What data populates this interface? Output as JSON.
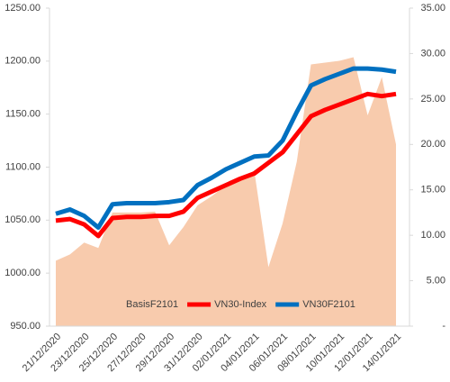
{
  "chart_data": {
    "type": "combo",
    "categories": [
      "21/12/2020",
      null,
      "23/12/2020",
      null,
      "25/12/2020",
      null,
      "27/12/2020",
      null,
      "29/12/2020",
      null,
      "31/12/2020",
      null,
      "02/01/2021",
      null,
      "04/01/2021",
      null,
      "06/01/2021",
      null,
      "08/01/2021",
      null,
      "10/01/2021",
      null,
      "12/01/2021",
      null,
      "14/01/2021"
    ],
    "series": [
      {
        "name": "BasisF2101",
        "type": "area",
        "axis": "y2",
        "color": "#f8cbad",
        "values": [
          7.2,
          7.9,
          9.2,
          8.6,
          12.5,
          12.5,
          12.5,
          12.6,
          8.9,
          10.9,
          13.3,
          14.3,
          15.5,
          16.3,
          17.1,
          6.5,
          11.3,
          18.1,
          28.8,
          29.0,
          29.2,
          29.6,
          23.2,
          27.4,
          20.0
        ]
      },
      {
        "name": "VN30-Index",
        "type": "line",
        "color": "#ff0000",
        "values": [
          1049.5,
          1051,
          1046,
          1035,
          1052,
          1053,
          1053,
          1054,
          1054,
          1058,
          1071,
          1077,
          1083,
          1089,
          1094,
          1104,
          1114,
          1131,
          1148,
          1154,
          1159,
          1164,
          1169,
          1167,
          1169
        ]
      },
      {
        "name": "VN30F2101",
        "type": "line",
        "color": "#0070c0",
        "values": [
          1056,
          1060,
          1054,
          1043,
          1065,
          1066,
          1066,
          1066,
          1067,
          1069,
          1083,
          1090,
          1098,
          1104,
          1110,
          1111,
          1125,
          1152,
          1177,
          1183,
          1188,
          1193,
          1193,
          1192,
          1190
        ]
      }
    ],
    "ylim": [
      950,
      1250
    ],
    "yticks": [
      {
        "value": 950,
        "label": "950.00"
      },
      {
        "value": 1000,
        "label": "1000.00"
      },
      {
        "value": 1050,
        "label": "1050.00"
      },
      {
        "value": 1100,
        "label": "1100.00"
      },
      {
        "value": 1150,
        "label": "1150.00"
      },
      {
        "value": 1200,
        "label": "1200.00"
      },
      {
        "value": 1250,
        "label": "1250.00"
      }
    ],
    "y2lim": [
      0,
      35
    ],
    "y2ticks": [
      {
        "value": 0,
        "label": "-"
      },
      {
        "value": 5,
        "label": "5.00"
      },
      {
        "value": 10,
        "label": "10.00"
      },
      {
        "value": 15,
        "label": "15.00"
      },
      {
        "value": 20,
        "label": "20.00"
      },
      {
        "value": 25,
        "label": "25.00"
      },
      {
        "value": 30,
        "label": "30.00"
      },
      {
        "value": 35,
        "label": "35.00"
      }
    ],
    "grid": false,
    "legend": "bottom"
  }
}
